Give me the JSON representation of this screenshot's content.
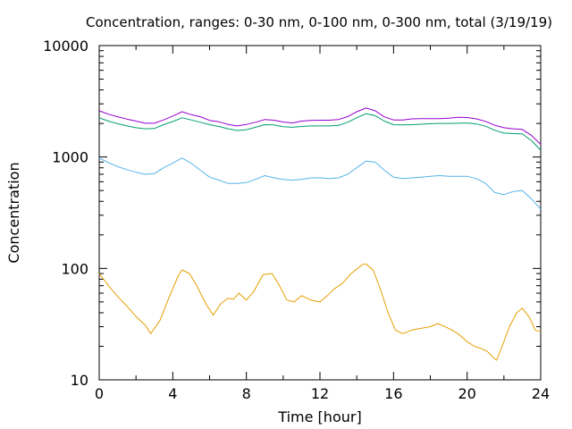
{
  "chart_data": {
    "type": "line",
    "title": "Concentration, ranges: 0-30 nm, 0-100 nm, 0-300 nm, total (3/19/19)",
    "xlabel": "Time [hour]",
    "ylabel": "Concentration",
    "xlim": [
      0,
      24
    ],
    "ylim": [
      10,
      10000
    ],
    "yscale": "log",
    "grid": false,
    "x_ticks": [
      "0",
      "4",
      "8",
      "12",
      "16",
      "20",
      "24"
    ],
    "y_ticks": [
      "10",
      "100",
      "1000",
      "10000"
    ],
    "series": [
      {
        "color": "#e69f00",
        "x": [
          0,
          0.5,
          1,
          1.5,
          2,
          2.5,
          2.8,
          3.3,
          3.8,
          4.3,
          4.5,
          4.9,
          5.3,
          5.8,
          6.2,
          6.6,
          7,
          7.3,
          7.6,
          8.0,
          8.4,
          8.9,
          9.4,
          9.8,
          10.2,
          10.6,
          11.0,
          11.5,
          12.0,
          12.4,
          12.8,
          13.2,
          13.7,
          14.3,
          14.5,
          14.9,
          15.3,
          15.7,
          16.1,
          16.5,
          17.0,
          17.5,
          18.0,
          18.4,
          19.0,
          19.5,
          20.0,
          20.4,
          20.8,
          21.1,
          21.4,
          21.6,
          21.9,
          22.3,
          22.7,
          23.0,
          23.4,
          23.7,
          24
        ],
        "y": [
          90,
          70,
          56,
          46,
          37,
          31,
          26,
          34,
          55,
          86,
          97,
          90,
          70,
          48,
          38,
          48,
          54,
          53,
          60,
          52,
          62,
          88,
          90,
          70,
          52,
          50,
          57,
          52,
          50,
          57,
          66,
          73,
          90,
          108,
          110,
          96,
          64,
          40,
          28,
          26,
          28,
          29,
          30,
          32,
          29,
          26,
          22,
          20,
          19,
          18,
          16,
          15,
          20,
          30,
          40,
          44,
          36,
          28,
          27
        ]
      },
      {
        "color": "#56b4e9",
        "x": [
          0,
          0.5,
          1,
          1.5,
          2,
          2.5,
          3,
          3.5,
          4,
          4.5,
          5,
          5.5,
          6,
          6.5,
          7,
          7.5,
          8,
          8.5,
          9,
          9.5,
          10,
          10.5,
          11,
          11.5,
          12,
          12.5,
          13,
          13.5,
          14,
          14.5,
          15,
          15.5,
          16,
          16.5,
          17,
          17.5,
          18,
          18.5,
          19,
          19.5,
          20,
          20.5,
          21,
          21.5,
          22,
          22.5,
          23,
          23.5,
          24
        ],
        "y": [
          980,
          890,
          820,
          770,
          730,
          700,
          710,
          800,
          880,
          980,
          880,
          760,
          660,
          620,
          580,
          580,
          590,
          630,
          680,
          650,
          630,
          620,
          630,
          650,
          650,
          640,
          650,
          700,
          800,
          920,
          900,
          760,
          660,
          640,
          650,
          660,
          670,
          680,
          670,
          670,
          670,
          640,
          580,
          480,
          460,
          490,
          500,
          420,
          340
        ]
      },
      {
        "color": "#009e73",
        "x": [
          0,
          0.5,
          1,
          1.5,
          2,
          2.5,
          3,
          3.5,
          4,
          4.5,
          5,
          5.5,
          6,
          6.5,
          7,
          7.5,
          8,
          8.5,
          9,
          9.5,
          10,
          10.5,
          11,
          11.5,
          12,
          12.5,
          13,
          13.5,
          14,
          14.5,
          15,
          15.5,
          16,
          16.5,
          17,
          17.5,
          18,
          18.5,
          19,
          19.5,
          20,
          20.5,
          21,
          21.5,
          22,
          22.5,
          23,
          23.5,
          24
        ],
        "y": [
          2250,
          2100,
          1990,
          1900,
          1830,
          1790,
          1800,
          1950,
          2080,
          2250,
          2150,
          2050,
          1950,
          1880,
          1790,
          1730,
          1760,
          1850,
          1950,
          1940,
          1870,
          1850,
          1880,
          1900,
          1900,
          1900,
          1920,
          2050,
          2250,
          2450,
          2350,
          2100,
          1950,
          1940,
          1950,
          1970,
          1990,
          2000,
          2000,
          2010,
          2020,
          1980,
          1890,
          1740,
          1640,
          1620,
          1610,
          1400,
          1150
        ]
      },
      {
        "color": "#9400d3",
        "x": [
          0,
          0.5,
          1,
          1.5,
          2,
          2.5,
          3,
          3.5,
          4,
          4.5,
          5,
          5.5,
          6,
          6.5,
          7,
          7.5,
          8,
          8.5,
          9,
          9.5,
          10,
          10.5,
          11,
          11.5,
          12,
          12.5,
          13,
          13.5,
          14,
          14.5,
          15,
          15.5,
          16,
          16.5,
          17,
          17.5,
          18,
          18.5,
          19,
          19.5,
          20,
          20.5,
          21,
          21.5,
          22,
          22.5,
          23,
          23.5,
          24
        ],
        "y": [
          2600,
          2420,
          2300,
          2190,
          2100,
          2010,
          2010,
          2150,
          2330,
          2550,
          2400,
          2300,
          2130,
          2070,
          1960,
          1900,
          1960,
          2050,
          2170,
          2140,
          2060,
          2020,
          2100,
          2130,
          2140,
          2140,
          2170,
          2300,
          2550,
          2750,
          2600,
          2290,
          2150,
          2150,
          2200,
          2210,
          2210,
          2210,
          2230,
          2270,
          2260,
          2200,
          2090,
          1930,
          1830,
          1790,
          1770,
          1560,
          1300
        ]
      }
    ]
  }
}
